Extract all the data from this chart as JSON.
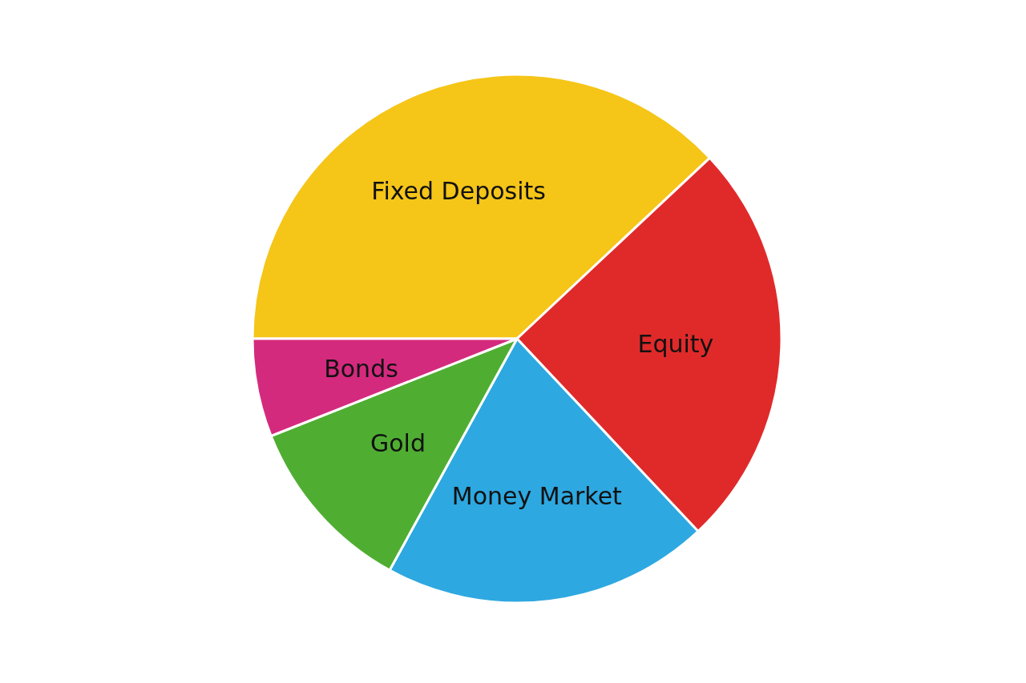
{
  "chart_data": {
    "type": "pie",
    "categories": [
      "Fixed Deposits",
      "Equity",
      "Money Market",
      "Gold",
      "Bonds"
    ],
    "values": [
      38,
      25,
      20,
      11,
      6
    ],
    "colors": [
      "#f5c518",
      "#e02a2a",
      "#2ea8e0",
      "#4fae32",
      "#d42a7e"
    ],
    "legend": false
  }
}
